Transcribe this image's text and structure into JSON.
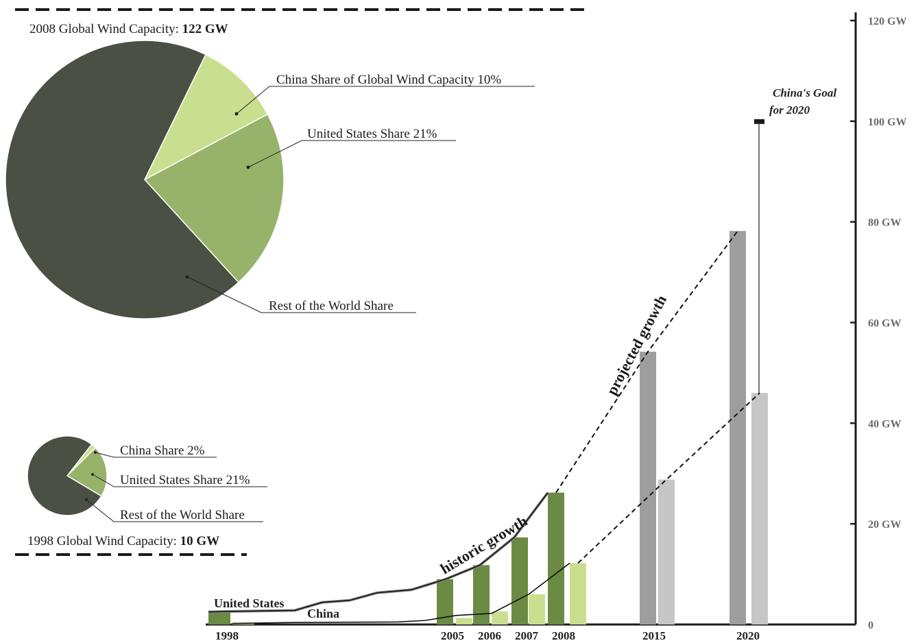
{
  "chart_data": [
    {
      "type": "pie",
      "title_prefix": "2008 Global Wind Capacity:",
      "title_value": "122 GW",
      "slices": [
        {
          "label": "China Share of Global Wind Capacity 10%",
          "value": 10,
          "color": "#c9df8f"
        },
        {
          "label": "United States Share 21%",
          "value": 21,
          "color": "#97b36a"
        },
        {
          "label": "Rest of the World Share",
          "value": 69,
          "color": "#4a5044"
        }
      ]
    },
    {
      "type": "pie",
      "title_prefix": "1998 Global Wind Capacity:",
      "title_value": "10 GW",
      "slices": [
        {
          "label": "China Share 2%",
          "value": 2,
          "color": "#c9df8f"
        },
        {
          "label": "United States Share 21%",
          "value": 21,
          "color": "#97b36a"
        },
        {
          "label": "Rest of the World Share",
          "value": 77,
          "color": "#4a5044"
        }
      ]
    },
    {
      "type": "bar",
      "categories": [
        "1998",
        "2005",
        "2006",
        "2007",
        "2008",
        "2015",
        "2020"
      ],
      "ytick_labels": [
        "0",
        "20 GW",
        "40 GW",
        "60 GW",
        "80 GW",
        "100 GW",
        "120 GW"
      ],
      "yticks": [
        0,
        20,
        40,
        60,
        80,
        100,
        120
      ],
      "ylim": [
        0,
        120
      ],
      "series": [
        {
          "name": "United States",
          "values": [
            2.5,
            9,
            11.8,
            17.3,
            26.2,
            54.2,
            78.2
          ],
          "color": "#6b8a43",
          "projected_color": "#9e9e9e"
        },
        {
          "name": "China",
          "values": [
            0.4,
            1.3,
            2.6,
            6,
            12.2,
            28.8,
            46
          ],
          "color": "#c9df8f",
          "projected_color": "#c6c6c6"
        }
      ],
      "goal": {
        "label_line1": "China's Goal",
        "label_line2": "for 2020",
        "value": 100
      },
      "annotations": {
        "historic": "historic growth",
        "projected": "projected growth"
      }
    }
  ]
}
